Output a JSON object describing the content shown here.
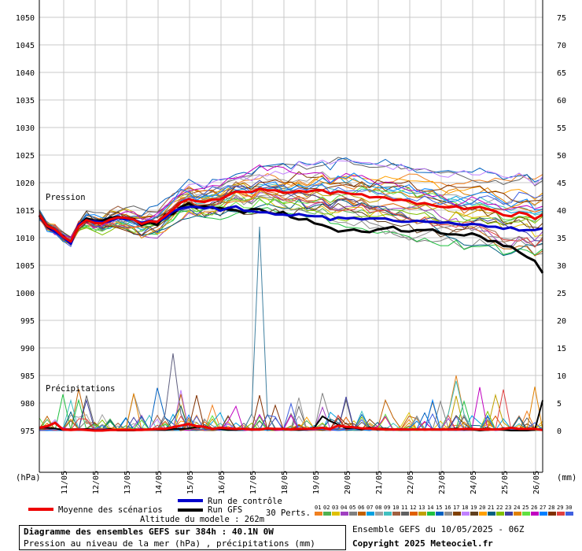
{
  "chart_data": {
    "type": "line",
    "left_axis": {
      "unit": "(hPa)",
      "ticks": [
        1050,
        1045,
        1040,
        1035,
        1030,
        1025,
        1020,
        1015,
        1010,
        1005,
        1000,
        995,
        990,
        985,
        980,
        975
      ],
      "range": [
        975,
        1050
      ]
    },
    "right_axis": {
      "unit": "(mm)",
      "ticks": [
        75,
        70,
        65,
        60,
        55,
        50,
        45,
        40,
        35,
        30,
        25,
        20,
        15,
        10,
        5,
        0
      ],
      "range": [
        0,
        75
      ]
    },
    "x_axis": {
      "tick_labels": [
        "11/05",
        "12/05",
        "13/05",
        "14/05",
        "15/05",
        "16/05",
        "17/05",
        "18/05",
        "19/05",
        "20/05",
        "21/05",
        "22/05",
        "23/05",
        "24/05",
        "25/05",
        "26/05"
      ],
      "step_hours": 6
    },
    "annotations": [
      "Pression",
      "Précipitations"
    ],
    "legend": {
      "mean": "Moyenne des scénarios",
      "control": "Run de contrôle",
      "gfs": "Run GFS",
      "perts": "30 Perts.",
      "altitude": "Altitude du modele : 262m",
      "members": [
        "01",
        "02",
        "03",
        "04",
        "05",
        "06",
        "07",
        "08",
        "09",
        "10",
        "11",
        "12",
        "13",
        "14",
        "15",
        "16",
        "17",
        "18",
        "19",
        "20",
        "21",
        "22",
        "23",
        "24",
        "25",
        "26",
        "27",
        "28",
        "29",
        "30"
      ]
    },
    "colors": {
      "mean": "#ee0000",
      "control": "#0000cc",
      "gfs": "#000000",
      "grid": "#c8c8c8",
      "members": [
        "#f08020",
        "#50b050",
        "#e0c000",
        "#a040c0",
        "#808080",
        "#c06000",
        "#00a0e0",
        "#a0a0a0",
        "#40c0c0",
        "#a06040",
        "#606060",
        "#e06000",
        "#c0a000",
        "#20c040",
        "#0060c0",
        "#909090",
        "#804000",
        "#c080ff",
        "#604020",
        "#ffa000",
        "#006080",
        "#80c000",
        "#4040a0",
        "#e08000",
        "#60e040",
        "#c000c0",
        "#0080ff",
        "#803000",
        "#e04040",
        "#4060e0"
      ]
    },
    "series": [
      {
        "name": "Moyenne des scénarios",
        "values": [
          1014.1,
          1012.1,
          1011.5,
          1010.2,
          1009.3,
          1012.1,
          1013.2,
          1012.7,
          1012.6,
          1013.3,
          1013.7,
          1013.6,
          1013.3,
          1012.5,
          1013.0,
          1012.9,
          1014.0,
          1015.1,
          1016.4,
          1017.0,
          1016.6,
          1016.5,
          1016.9,
          1017.0,
          1017.7,
          1018.4,
          1018.3,
          1018.3,
          1018.9,
          1018.6,
          1018.6,
          1018.2,
          1018.2,
          1018.5,
          1018.3,
          1018.6,
          1018.6,
          1018.0,
          1018.4,
          1018.1,
          1017.9,
          1017.9,
          1017.3,
          1017.4,
          1017.3,
          1016.8,
          1016.9,
          1016.7,
          1016.1,
          1016.3,
          1015.9,
          1015.6,
          1015.5,
          1015.7,
          1015.2,
          1015.4,
          1015.6,
          1015.2,
          1014.8,
          1014.1,
          1013.9,
          1014.6,
          1014.3,
          1013.4,
          1014.2
        ]
      },
      {
        "name": "Run de contrôle",
        "values": [
          1014.1,
          1012.2,
          1011.1,
          1010.1,
          1008.9,
          1012.4,
          1013.1,
          1013.0,
          1012.8,
          1013.0,
          1013.6,
          1013.3,
          1013.3,
          1012.7,
          1013.1,
          1012.9,
          1013.6,
          1014.8,
          1015.3,
          1015.6,
          1015.6,
          1015.3,
          1015.6,
          1014.9,
          1015.4,
          1015.7,
          1014.9,
          1014.8,
          1014.6,
          1014.6,
          1014.2,
          1014.2,
          1014.0,
          1014.3,
          1014.0,
          1013.9,
          1013.9,
          1013.2,
          1013.7,
          1013.5,
          1013.6,
          1013.3,
          1013.5,
          1013.5,
          1013.5,
          1013.1,
          1012.9,
          1012.9,
          1013.1,
          1012.9,
          1012.9,
          1012.7,
          1012.8,
          1012.5,
          1012.3,
          1012.5,
          1012.4,
          1012.0,
          1012.0,
          1011.6,
          1011.9,
          1011.3,
          1011.4,
          1011.4,
          1011.7
        ]
      },
      {
        "name": "Run GFS",
        "values": [
          1014.0,
          1012.0,
          1011.1,
          1010.3,
          1009.0,
          1012.3,
          1013.5,
          1013.1,
          1013.1,
          1013.6,
          1013.8,
          1013.5,
          1013.4,
          1012.3,
          1012.8,
          1012.3,
          1014.2,
          1014.3,
          1015.6,
          1016.2,
          1015.4,
          1015.7,
          1015.4,
          1015.4,
          1015.1,
          1015.0,
          1014.5,
          1015.2,
          1015.2,
          1014.6,
          1014.3,
          1014.7,
          1013.7,
          1013.3,
          1013.4,
          1012.6,
          1012.3,
          1011.8,
          1011.1,
          1011.3,
          1011.5,
          1011.1,
          1011.0,
          1011.5,
          1011.7,
          1012.0,
          1011.2,
          1011.1,
          1011.4,
          1011.4,
          1011.5,
          1010.8,
          1010.6,
          1010.6,
          1010.4,
          1010.8,
          1010.3,
          1009.4,
          1009.4,
          1008.5,
          1008.4,
          1007.4,
          1006.5,
          1005.8,
          1003.6
        ]
      },
      {
        "name": "Précipitations moyenne",
        "axis": "right",
        "values": [
          0.5,
          0.8,
          1.4,
          0.2,
          0.1,
          0.2,
          0.1,
          0.0,
          0.0,
          0.1,
          0.1,
          0.1,
          0.1,
          0.1,
          0.2,
          0.3,
          0.3,
          0.6,
          0.9,
          1.2,
          0.8,
          0.7,
          0.3,
          0.5,
          0.4,
          0.3,
          0.3,
          0.2,
          0.2,
          0.4,
          0.3,
          0.3,
          0.2,
          0.3,
          0.3,
          0.4,
          0.5,
          0.3,
          0.9,
          0.7,
          0.6,
          0.4,
          0.4,
          0.3,
          0.2,
          0.2,
          0.2,
          0.2,
          0.2,
          0.2,
          0.2,
          0.2,
          0.2,
          0.2,
          0.3,
          0.3,
          0.2,
          0.2,
          0.2,
          0.3,
          0.5,
          0.3,
          0.3,
          0.3,
          0.1
        ]
      },
      {
        "name": "Précipitations GFS",
        "axis": "right",
        "values": [
          0.6,
          0.5,
          0.4,
          0.1,
          0.1,
          0.2,
          0.3,
          0.1,
          0.1,
          0.3,
          0.0,
          0.0,
          0.0,
          0.2,
          0.2,
          0.2,
          0.1,
          0.3,
          0.3,
          0.4,
          0.6,
          0.7,
          0.4,
          0.3,
          0.1,
          0.1,
          0.4,
          0.1,
          0.3,
          0.3,
          0.2,
          0.4,
          0.2,
          0.1,
          0.2,
          0.6,
          2.6,
          1.7,
          1.1,
          0.4,
          0.5,
          0.2,
          0.6,
          0.2,
          0.4,
          0.2,
          0.1,
          0.1,
          0.2,
          0.2,
          0.2,
          0.2,
          0.2,
          0.4,
          0.2,
          0.2,
          0.0,
          0.1,
          0.2,
          0.1,
          0.0,
          0.0,
          0.0,
          0.1,
          5.5
        ]
      }
    ]
  },
  "footer": {
    "title": "Diagramme des ensembles GEFS sur 384h : 40.1N 0W",
    "subtitle": "Pression au niveau de la mer (hPa) , précipitations (mm)",
    "run": "Ensemble GEFS du 10/05/2025 - 06Z",
    "copyright": "Copyright 2025 Meteociel.fr"
  }
}
